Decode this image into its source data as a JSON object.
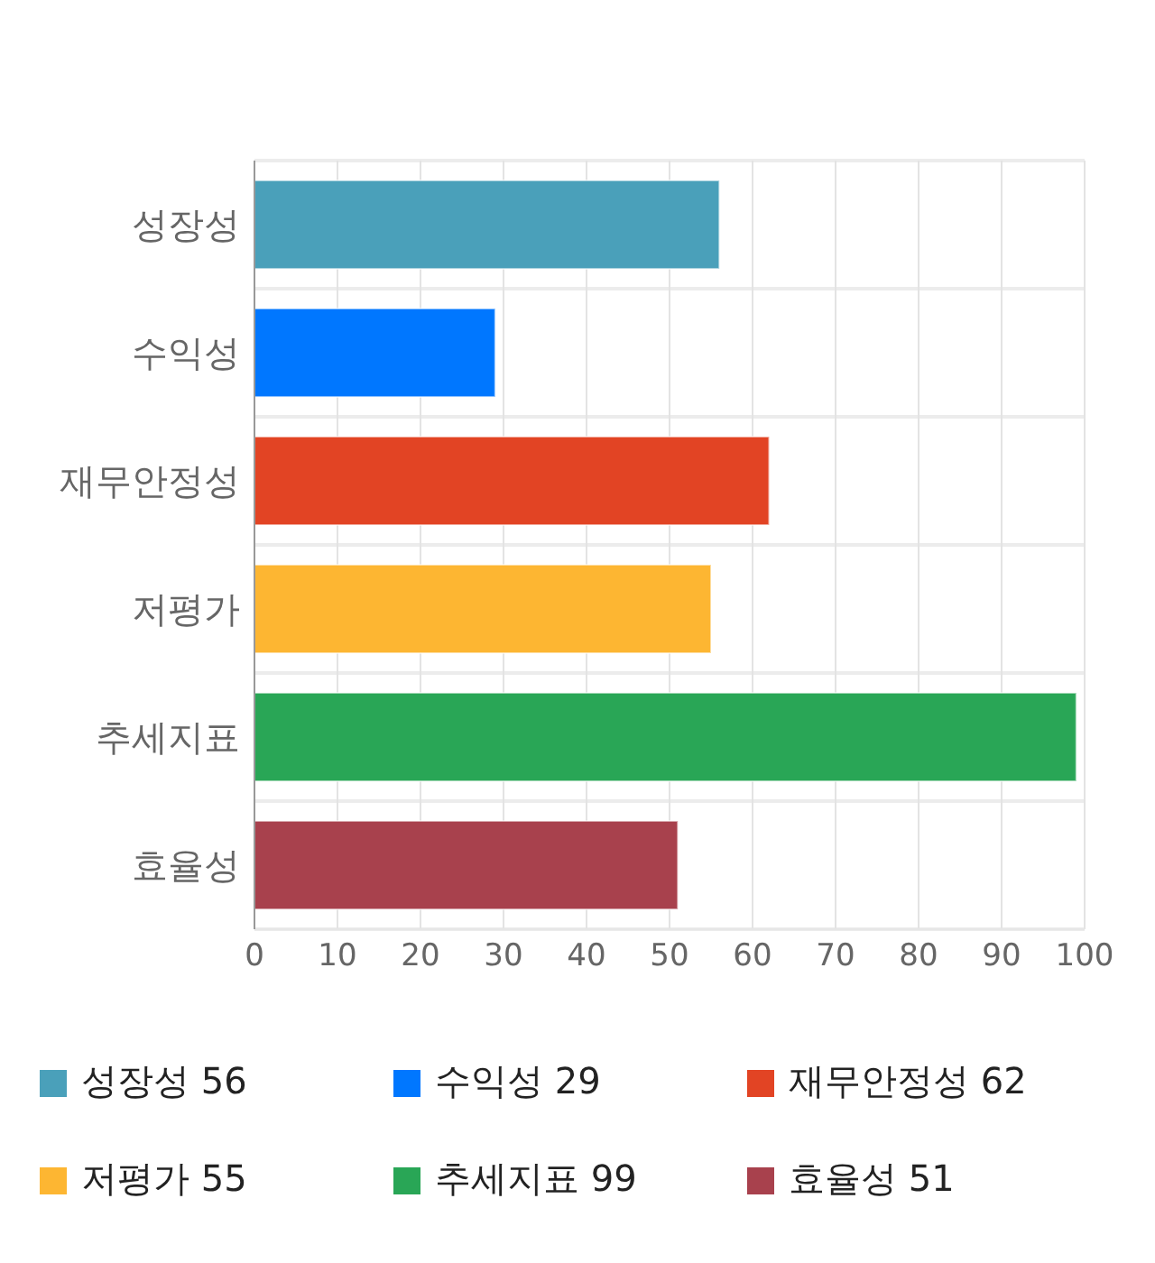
{
  "chart_data": {
    "type": "bar",
    "orientation": "horizontal",
    "stacked": true,
    "categories": [
      "성장성",
      "수익성",
      "재무안정성",
      "저평가",
      "추세지표",
      "효율성"
    ],
    "series": [
      {
        "name": "성장성 56",
        "color": "#4aa0ba",
        "values": [
          56,
          null,
          null,
          null,
          null,
          null
        ]
      },
      {
        "name": "수익성 29",
        "color": "#0077ff",
        "values": [
          null,
          29,
          null,
          null,
          null,
          null
        ]
      },
      {
        "name": "재무안정성 62",
        "color": "#e24424",
        "values": [
          null,
          null,
          62,
          null,
          null,
          null
        ]
      },
      {
        "name": "저평가 55",
        "color": "#fdb632",
        "values": [
          null,
          null,
          null,
          55,
          null,
          null
        ]
      },
      {
        "name": "추세지표 99",
        "color": "#29a656",
        "values": [
          null,
          null,
          null,
          null,
          99,
          null
        ]
      },
      {
        "name": "효율성 51",
        "color": "#a8414d",
        "values": [
          null,
          null,
          null,
          null,
          null,
          51
        ]
      }
    ],
    "xlim": [
      0,
      100
    ],
    "xticks": [
      0,
      10,
      20,
      30,
      40,
      50,
      60,
      70,
      80,
      90,
      100
    ],
    "grid": true,
    "legend": "bottom"
  }
}
